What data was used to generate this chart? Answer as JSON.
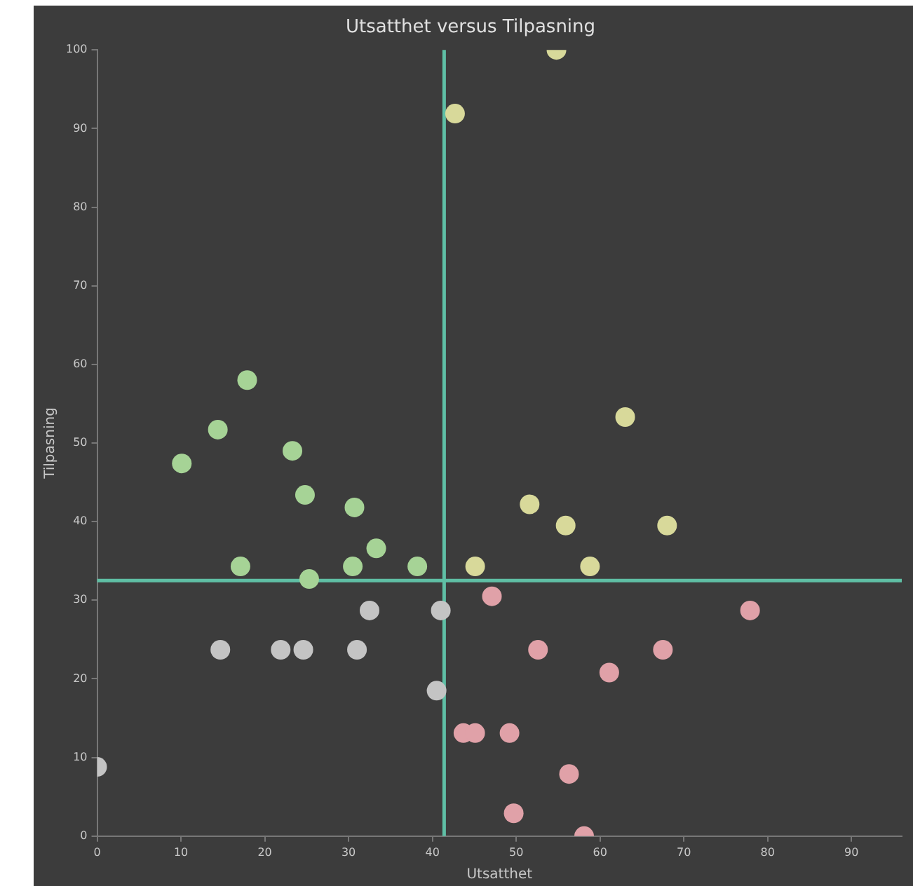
{
  "chart_data": {
    "type": "scatter",
    "title": "Utsatthet versus Tilpasning",
    "xlabel": "Utsatthet",
    "ylabel": "Tilpasning",
    "xlim": [
      0,
      96
    ],
    "xticks": [
      0,
      10,
      20,
      30,
      40,
      50,
      60,
      70,
      80,
      90
    ],
    "ylim": [
      0,
      100
    ],
    "yticks": [
      0,
      10,
      20,
      30,
      40,
      50,
      60,
      70,
      80,
      90,
      100
    ],
    "grid": false,
    "legend": false,
    "marker": "circle",
    "series": [
      {
        "color": "#a6d396",
        "x": [
          10.1,
          14.4,
          17.9,
          23.3,
          24.8,
          30.7,
          33.3,
          17.1,
          30.5,
          38.2,
          25.3
        ],
        "values": [
          47.4,
          51.7,
          58,
          49,
          43.4,
          41.8,
          36.6,
          34.3,
          34.3,
          34.3,
          32.7
        ]
      },
      {
        "color": "#d8d99a",
        "x": [
          42.7,
          54.8,
          63,
          51.6,
          55.9,
          68,
          45.1,
          58.8
        ],
        "values": [
          91.9,
          100,
          53.3,
          42.2,
          39.5,
          39.5,
          34.3,
          34.3
        ]
      },
      {
        "color": "#c4c4c4",
        "x": [
          0,
          14.7,
          21.9,
          23.8,
          24.6,
          31,
          32.5,
          41,
          40.5
        ],
        "values": [
          8.8,
          23.7,
          23.7,
          null,
          23.7,
          23.7,
          28.7,
          28.7,
          18.5
        ]
      },
      {
        "color": "#e0a1a8",
        "x": [
          47.1,
          77.9,
          52.6,
          67.5,
          61.1,
          43.7,
          45.1,
          49.2,
          56.3,
          49.7,
          58.1
        ],
        "values": [
          30.5,
          28.7,
          23.7,
          23.7,
          20.8,
          13.1,
          13.1,
          13.1,
          7.9,
          2.9,
          0
        ]
      }
    ],
    "ref_lines": [
      {
        "axis": "x",
        "value": 41.4,
        "color": "#5fbfa5"
      },
      {
        "axis": "y",
        "value": 32.5,
        "color": "#5fbfa5"
      }
    ]
  }
}
